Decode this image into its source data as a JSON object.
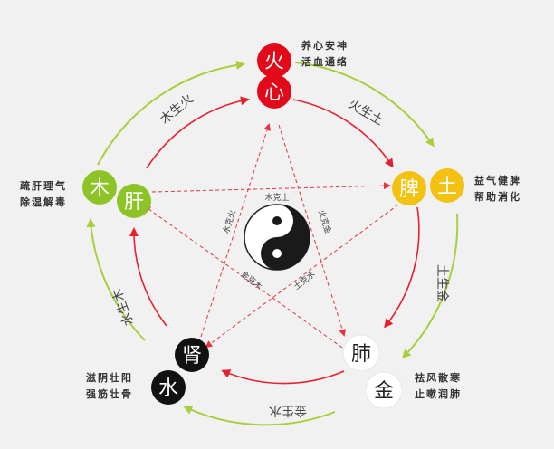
{
  "colors": {
    "fire": "#e1091a",
    "earth": "#f3c10f",
    "wood": "#8cc428",
    "water": "#111111",
    "metal": "#ffffff",
    "generating_arrow": "#a7cf3c",
    "inner_arrow": "#e6212f",
    "dashed_arrow": "#e8323c",
    "text": "#333333"
  },
  "elements": {
    "fire": {
      "element": "火",
      "organ": "心",
      "note": [
        "养心安神",
        "活血通络"
      ]
    },
    "earth": {
      "element": "土",
      "organ": "脾",
      "note": [
        "益气健脾",
        "帮助消化"
      ]
    },
    "metal": {
      "element": "金",
      "organ": "肺",
      "note": [
        "祛风散寒",
        "止嗽润肺"
      ]
    },
    "water": {
      "element": "水",
      "organ": "肾",
      "note": [
        "滋阴壮阳",
        "强筋壮骨"
      ]
    },
    "wood": {
      "element": "木",
      "organ": "肝",
      "note": [
        "疏肝理气",
        "除湿解毒"
      ]
    }
  },
  "generating": [
    {
      "label": "火生土"
    },
    {
      "label": "土生金"
    },
    {
      "label": "金生水"
    },
    {
      "label": "水生木"
    },
    {
      "label": "木生火"
    }
  ],
  "controlling": [
    {
      "label": "木克土"
    },
    {
      "label": "火克金"
    },
    {
      "label": "土克水"
    },
    {
      "label": "金克木"
    },
    {
      "label": "水克火"
    }
  ],
  "icons": {
    "center": "yin-yang-icon"
  }
}
